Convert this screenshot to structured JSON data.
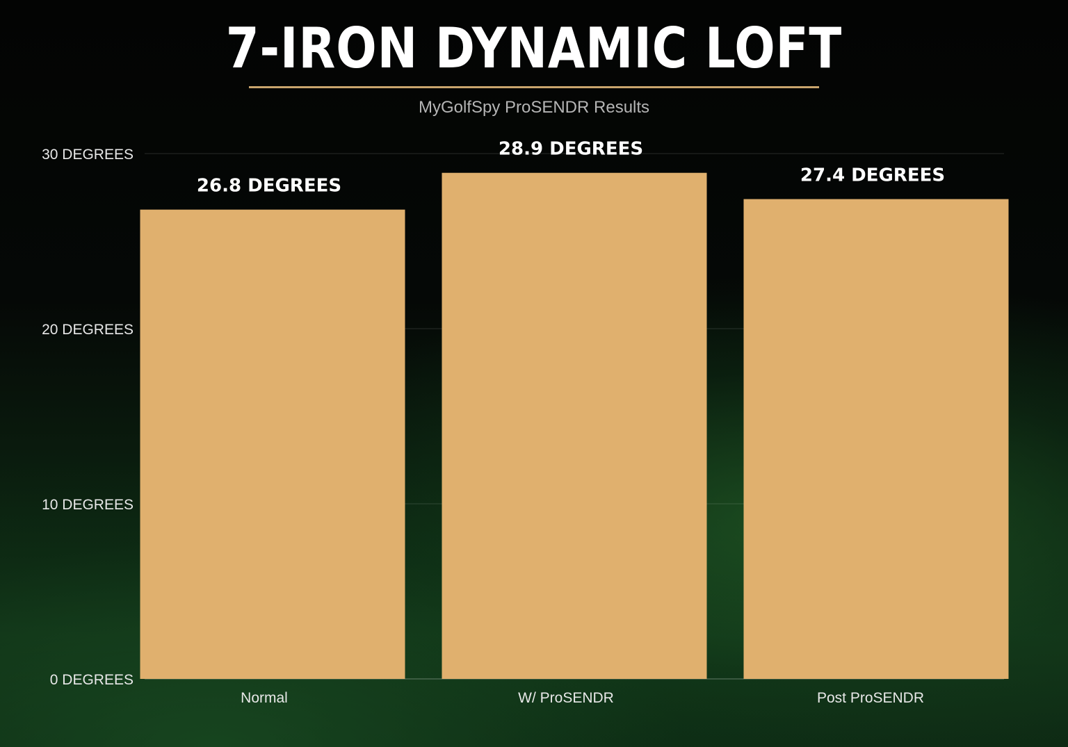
{
  "chart_data": {
    "type": "bar",
    "title": "7-IRON DYNAMIC LOFT",
    "subtitle": "MyGolfSpy ProSENDR Results",
    "categories": [
      "Normal",
      "W/ ProSENDR",
      "Post ProSENDR"
    ],
    "values": [
      26.8,
      28.9,
      27.4
    ],
    "data_labels": [
      "26.8 DEGREES",
      "28.9 DEGREES",
      "27.4 DEGREES"
    ],
    "y_ticks": [
      {
        "value": 0,
        "label": "0 DEGREES"
      },
      {
        "value": 10,
        "label": "10 DEGREES"
      },
      {
        "value": 20,
        "label": "20 DEGREES"
      },
      {
        "value": 30,
        "label": "30 DEGREES"
      }
    ],
    "ylim": [
      0,
      30
    ],
    "grid": true,
    "xlabel": "",
    "ylabel": "",
    "bar_color": "#e0b06e",
    "title_rule_color": "#c9a46c"
  }
}
